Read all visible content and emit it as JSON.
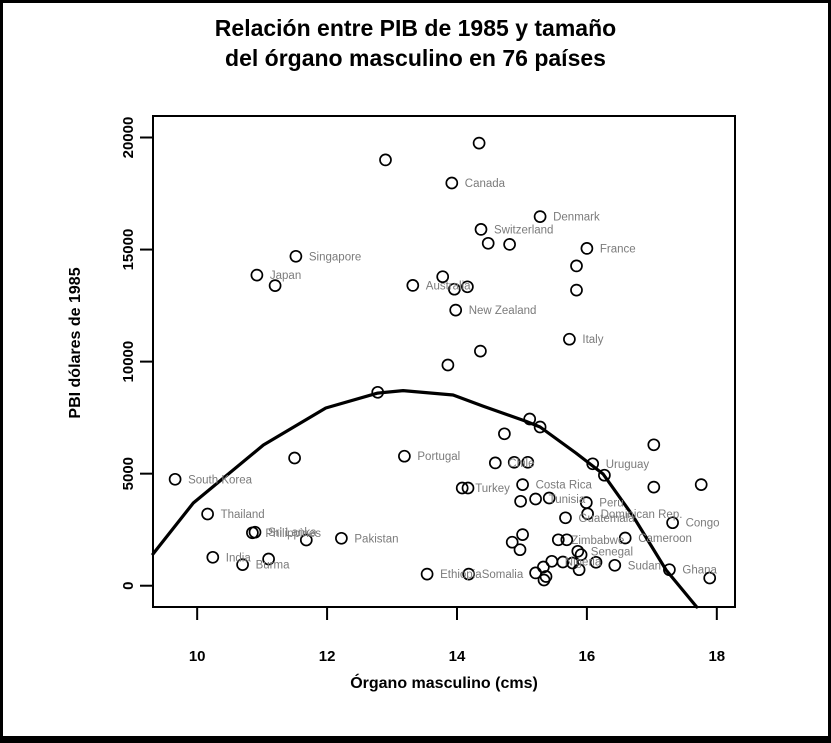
{
  "chart_data": {
    "type": "scatter",
    "title_line1": "Relación entre PIB de 1985 y tamaño",
    "title_line2": "del órgano masculino en 76 países",
    "xlabel": "Órgano masculino (cms)",
    "ylabel": "PBI dólares de 1985",
    "xlim": [
      9.32,
      18.28
    ],
    "ylim": [
      -950,
      20960
    ],
    "x_ticks": [
      10,
      12,
      14,
      16,
      18
    ],
    "y_ticks": [
      0,
      5000,
      10000,
      15000,
      20000
    ],
    "grid": false,
    "legend": "none",
    "point_color": "#000000",
    "point_label_color": "#7b7b7b",
    "trend_color": "#000000",
    "points": [
      {
        "label": "Canada",
        "x": 13.92,
        "y": 17970
      },
      {
        "label": "Denmark",
        "x": 15.28,
        "y": 16470
      },
      {
        "label": "Switzerland",
        "x": 14.37,
        "y": 15900
      },
      {
        "label": "France",
        "x": 16.0,
        "y": 15050
      },
      {
        "label": "Singapore",
        "x": 11.52,
        "y": 14700
      },
      {
        "label": "Japan",
        "x": 10.92,
        "y": 13860
      },
      {
        "label": "Australia",
        "x": 13.32,
        "y": 13400
      },
      {
        "label": "New Zealand",
        "x": 13.98,
        "y": 12300
      },
      {
        "label": "Italy",
        "x": 15.73,
        "y": 11000
      },
      {
        "label": "Portugal",
        "x": 13.19,
        "y": 5780
      },
      {
        "label": "South Korea",
        "x": 9.66,
        "y": 4750
      },
      {
        "label": "Thailand",
        "x": 10.16,
        "y": 3200
      },
      {
        "label": "Philippines",
        "x": 10.85,
        "y": 2360
      },
      {
        "label": "Sri Lanka",
        "x": 10.89,
        "y": 2390
      },
      {
        "label": "Pakistan",
        "x": 12.22,
        "y": 2115
      },
      {
        "label": "India",
        "x": 10.24,
        "y": 1270
      },
      {
        "label": "Burma",
        "x": 10.7,
        "y": 940
      },
      {
        "label": "Chile",
        "x": 14.59,
        "y": 5480
      },
      {
        "label": "Uruguay",
        "x": 16.09,
        "y": 5440
      },
      {
        "label": "Turkey",
        "x": 14.08,
        "y": 4360
      },
      {
        "label": "Costa Rica",
        "x": 15.01,
        "y": 4510
      },
      {
        "label": "Tunisia",
        "x": 15.21,
        "y": 3870
      },
      {
        "label": "Peru",
        "x": 15.99,
        "y": 3710
      },
      {
        "label": "Dominican Rep.",
        "x": 16.01,
        "y": 3210
      },
      {
        "label": "Guatemala",
        "x": 15.67,
        "y": 3030
      },
      {
        "label": "Congo",
        "x": 17.32,
        "y": 2810
      },
      {
        "label": "Zimbabwe",
        "x": 15.56,
        "y": 2050
      },
      {
        "label": "Cameroon",
        "x": 16.59,
        "y": 2130
      },
      {
        "label": "Senegal",
        "x": 15.86,
        "y": 1535
      },
      {
        "label": "Nigeria",
        "x": 15.46,
        "y": 1090
      },
      {
        "label": "Sudan",
        "x": 16.43,
        "y": 910
      },
      {
        "label": "Ghana",
        "x": 17.27,
        "y": 715
      },
      {
        "label": "Ethiopia",
        "x": 13.54,
        "y": 520
      },
      {
        "label": "Somalia",
        "x": 14.18,
        "y": 520
      },
      {
        "label": null,
        "x": 12.9,
        "y": 19000
      },
      {
        "label": null,
        "x": 14.34,
        "y": 19750
      },
      {
        "label": null,
        "x": 14.48,
        "y": 15280
      },
      {
        "label": null,
        "x": 14.81,
        "y": 15230
      },
      {
        "label": null,
        "x": 15.84,
        "y": 14270
      },
      {
        "label": null,
        "x": 11.2,
        "y": 13390
      },
      {
        "label": null,
        "x": 13.78,
        "y": 13790
      },
      {
        "label": null,
        "x": 13.96,
        "y": 13230
      },
      {
        "label": null,
        "x": 14.16,
        "y": 13340
      },
      {
        "label": null,
        "x": 15.84,
        "y": 13190
      },
      {
        "label": null,
        "x": 14.36,
        "y": 10470
      },
      {
        "label": null,
        "x": 13.86,
        "y": 9850
      },
      {
        "label": null,
        "x": 12.78,
        "y": 8630
      },
      {
        "label": null,
        "x": 11.5,
        "y": 5700
      },
      {
        "label": null,
        "x": 15.12,
        "y": 7440
      },
      {
        "label": null,
        "x": 15.28,
        "y": 7080
      },
      {
        "label": null,
        "x": 14.73,
        "y": 6780
      },
      {
        "label": null,
        "x": 17.03,
        "y": 6290
      },
      {
        "label": null,
        "x": 17.03,
        "y": 4400
      },
      {
        "label": null,
        "x": 17.76,
        "y": 4510
      },
      {
        "label": null,
        "x": 16.27,
        "y": 4930
      },
      {
        "label": null,
        "x": 14.88,
        "y": 5505
      },
      {
        "label": null,
        "x": 15.09,
        "y": 5505
      },
      {
        "label": null,
        "x": 14.17,
        "y": 4360
      },
      {
        "label": null,
        "x": 15.42,
        "y": 3915
      },
      {
        "label": null,
        "x": 14.98,
        "y": 3765
      },
      {
        "label": null,
        "x": 11.68,
        "y": 2040
      },
      {
        "label": null,
        "x": 11.1,
        "y": 1190
      },
      {
        "label": null,
        "x": 14.85,
        "y": 1940
      },
      {
        "label": null,
        "x": 15.01,
        "y": 2280
      },
      {
        "label": null,
        "x": 14.97,
        "y": 1605
      },
      {
        "label": null,
        "x": 15.69,
        "y": 2050
      },
      {
        "label": null,
        "x": 15.91,
        "y": 1385
      },
      {
        "label": null,
        "x": 15.63,
        "y": 1060
      },
      {
        "label": null,
        "x": 15.78,
        "y": 1015
      },
      {
        "label": null,
        "x": 15.88,
        "y": 715
      },
      {
        "label": null,
        "x": 16.14,
        "y": 1045
      },
      {
        "label": null,
        "x": 15.33,
        "y": 835
      },
      {
        "label": null,
        "x": 15.21,
        "y": 570
      },
      {
        "label": null,
        "x": 15.37,
        "y": 410
      },
      {
        "label": null,
        "x": 15.34,
        "y": 255
      },
      {
        "label": null,
        "x": 17.89,
        "y": 345
      }
    ],
    "trend_curve": [
      [
        9.32,
        1414
      ],
      [
        9.94,
        3690
      ],
      [
        11.02,
        6277
      ],
      [
        11.98,
        7928
      ],
      [
        12.78,
        8597
      ],
      [
        13.17,
        8708
      ],
      [
        13.94,
        8508
      ],
      [
        14.4,
        8017
      ],
      [
        15.05,
        7348
      ],
      [
        15.28,
        7080
      ],
      [
        15.83,
        5920
      ],
      [
        16.25,
        4984
      ],
      [
        16.71,
        3110
      ],
      [
        17.22,
        700
      ],
      [
        17.69,
        -950
      ]
    ]
  }
}
